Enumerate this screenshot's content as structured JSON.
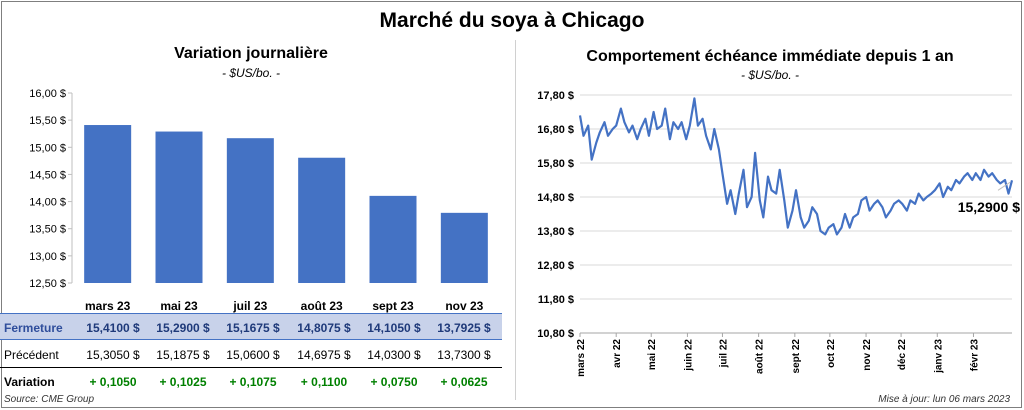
{
  "page": {
    "title": "Marché du soya à Chicago",
    "source": "Source: CME Group",
    "updated": "Mise à jour: lun 06 mars 2023"
  },
  "left": {
    "title": "Variation journalière",
    "unit": "- $US/bo. -"
  },
  "right": {
    "title": "Comportement échéance immédiate depuis 1 an",
    "unit": "- $US/bo. -",
    "last_label": "15,2900 $"
  },
  "table": {
    "row_labels": {
      "close": "Fermeture",
      "prev": "Précédent",
      "var": "Variation"
    },
    "close": [
      "15,4100 $",
      "15,2900 $",
      "15,1675 $",
      "14,8075 $",
      "14,1050 $",
      "13,7925 $"
    ],
    "prev": [
      "15,3050 $",
      "15,1875 $",
      "15,0600 $",
      "14,6975 $",
      "14,0300 $",
      "13,7300 $"
    ],
    "var": [
      "+ 0,1050",
      "+ 0,1025",
      "+ 0,1075",
      "+ 0,1100",
      "+ 0,0750",
      "+ 0,0625"
    ]
  },
  "colors": {
    "bar": "#4472c4",
    "line": "#4472c4",
    "positive": "#008000",
    "header_band": "#c8d2ea"
  },
  "chart_data": [
    {
      "type": "bar",
      "title": "Variation journalière",
      "categories": [
        "mars 23",
        "mai 23",
        "juil 23",
        "août 23",
        "sept 23",
        "nov 23"
      ],
      "values": [
        15.41,
        15.29,
        15.1675,
        14.8075,
        14.105,
        13.7925
      ],
      "ylim": [
        12.5,
        16.0
      ],
      "yticks": [
        12.5,
        13.0,
        13.5,
        14.0,
        14.5,
        15.0,
        15.5,
        16.0
      ],
      "ytick_labels": [
        "12,50 $",
        "13,00 $",
        "13,50 $",
        "14,00 $",
        "14,50 $",
        "15,00 $",
        "15,50 $",
        "16,00 $"
      ],
      "grid": false
    },
    {
      "type": "line",
      "title": "Comportement échéance immédiate depuis 1 an",
      "ylim": [
        10.8,
        17.8
      ],
      "yticks": [
        10.8,
        11.8,
        12.8,
        13.8,
        14.8,
        15.8,
        16.8,
        17.8
      ],
      "ytick_labels": [
        "10,80 $",
        "11,80 $",
        "12,80 $",
        "13,80 $",
        "14,80 $",
        "15,80 $",
        "16,80 $",
        "17,80 $"
      ],
      "xtick_labels": [
        "mars 22",
        "avr 22",
        "mai 22",
        "juin 22",
        "juil 22",
        "août 22",
        "sept 22",
        "oct 22",
        "nov 22",
        "déc 22",
        "janv 23",
        "févr 23"
      ],
      "grid": true,
      "series": [
        {
          "x": [
            "2022-03-01",
            "2022-03-04",
            "2022-03-08",
            "2022-03-11",
            "2022-03-15",
            "2022-03-18",
            "2022-03-22",
            "2022-03-25",
            "2022-03-29",
            "2022-04-01",
            "2022-04-05",
            "2022-04-08",
            "2022-04-12",
            "2022-04-15",
            "2022-04-19",
            "2022-04-22",
            "2022-04-26",
            "2022-04-29",
            "2022-05-03",
            "2022-05-06",
            "2022-05-10",
            "2022-05-13",
            "2022-05-17",
            "2022-05-20",
            "2022-05-24",
            "2022-05-27",
            "2022-05-31",
            "2022-06-03",
            "2022-06-07",
            "2022-06-10",
            "2022-06-14",
            "2022-06-17",
            "2022-06-21",
            "2022-06-24",
            "2022-06-28",
            "2022-07-01",
            "2022-07-05",
            "2022-07-08",
            "2022-07-12",
            "2022-07-15",
            "2022-07-19",
            "2022-07-22",
            "2022-07-26",
            "2022-07-29",
            "2022-08-02",
            "2022-08-05",
            "2022-08-09",
            "2022-08-12",
            "2022-08-16",
            "2022-08-19",
            "2022-08-23",
            "2022-08-26",
            "2022-08-30",
            "2022-09-02",
            "2022-09-06",
            "2022-09-09",
            "2022-09-13",
            "2022-09-16",
            "2022-09-20",
            "2022-09-23",
            "2022-09-27",
            "2022-09-30",
            "2022-10-04",
            "2022-10-07",
            "2022-10-11",
            "2022-10-14",
            "2022-10-18",
            "2022-10-21",
            "2022-10-25",
            "2022-10-28",
            "2022-11-01",
            "2022-11-04",
            "2022-11-08",
            "2022-11-11",
            "2022-11-15",
            "2022-11-18",
            "2022-11-22",
            "2022-11-25",
            "2022-11-29",
            "2022-12-02",
            "2022-12-06",
            "2022-12-09",
            "2022-12-13",
            "2022-12-16",
            "2022-12-20",
            "2022-12-23",
            "2022-12-27",
            "2022-12-30",
            "2023-01-03",
            "2023-01-06",
            "2023-01-10",
            "2023-01-13",
            "2023-01-17",
            "2023-01-20",
            "2023-01-24",
            "2023-01-27",
            "2023-01-31",
            "2023-02-03",
            "2023-02-07",
            "2023-02-10",
            "2023-02-14",
            "2023-02-17",
            "2023-02-21",
            "2023-02-24",
            "2023-02-28",
            "2023-03-03",
            "2023-03-06"
          ],
          "y": [
            17.2,
            16.6,
            16.9,
            15.9,
            16.4,
            16.7,
            17.0,
            16.6,
            16.8,
            16.9,
            17.4,
            17.0,
            16.7,
            16.9,
            16.5,
            16.8,
            17.1,
            16.6,
            17.3,
            16.8,
            16.9,
            17.4,
            16.5,
            17.0,
            16.8,
            17.0,
            16.5,
            16.9,
            17.7,
            16.9,
            17.1,
            16.6,
            16.2,
            16.8,
            16.2,
            15.5,
            14.6,
            15.0,
            14.3,
            14.9,
            15.6,
            14.5,
            14.8,
            16.1,
            14.7,
            14.2,
            15.4,
            15.0,
            14.9,
            15.6,
            14.7,
            13.9,
            14.4,
            15.0,
            14.2,
            13.9,
            14.1,
            14.5,
            14.3,
            13.8,
            13.7,
            13.9,
            14.0,
            13.7,
            13.9,
            14.3,
            13.9,
            14.2,
            14.3,
            14.7,
            14.8,
            14.4,
            14.6,
            14.7,
            14.5,
            14.2,
            14.4,
            14.6,
            14.7,
            14.6,
            14.4,
            14.7,
            14.6,
            14.9,
            14.7,
            14.8,
            14.9,
            15.0,
            15.2,
            14.8,
            15.1,
            15.0,
            15.3,
            15.2,
            15.4,
            15.5,
            15.3,
            15.5,
            15.3,
            15.6,
            15.4,
            15.5,
            15.3,
            15.2,
            15.3,
            14.9,
            15.29
          ]
        }
      ]
    }
  ]
}
